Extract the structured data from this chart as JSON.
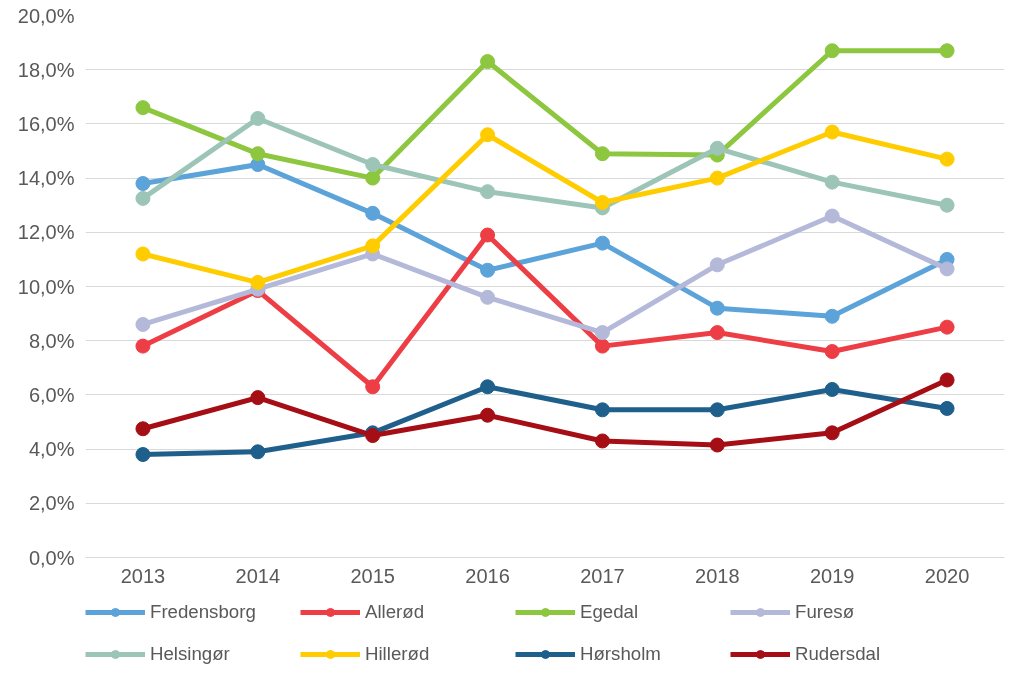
{
  "chart_data": {
    "type": "line",
    "categories": [
      "2013",
      "2014",
      "2015",
      "2016",
      "2017",
      "2018",
      "2019",
      "2020"
    ],
    "ylim": [
      0,
      20
    ],
    "yticks": [
      {
        "value": 0,
        "label": "0,0%"
      },
      {
        "value": 2,
        "label": "2,0%"
      },
      {
        "value": 4,
        "label": "4,0%"
      },
      {
        "value": 6,
        "label": "6,0%"
      },
      {
        "value": 8,
        "label": "8,0%"
      },
      {
        "value": 10,
        "label": "10,0%"
      },
      {
        "value": 12,
        "label": "12,0%"
      },
      {
        "value": 14,
        "label": "14,0%"
      },
      {
        "value": 16,
        "label": "16,0%"
      },
      {
        "value": 18,
        "label": "18,0%"
      },
      {
        "value": 20,
        "label": "20,0%"
      }
    ],
    "grid": "y",
    "legend": "bottom",
    "marker": "circle",
    "line_style": "solid",
    "series": [
      {
        "name": "Fredensborg",
        "color": "#5ba3d9",
        "values": [
          13.8,
          14.5,
          12.7,
          10.6,
          11.6,
          9.2,
          8.9,
          11.0
        ]
      },
      {
        "name": "Allerød",
        "color": "#ee3e45",
        "values": [
          7.8,
          9.85,
          6.3,
          11.9,
          7.8,
          8.3,
          7.6,
          8.5
        ]
      },
      {
        "name": "Egedal",
        "color": "#8dc63f",
        "values": [
          16.6,
          14.9,
          14.0,
          18.3,
          14.9,
          14.85,
          18.7,
          18.7
        ]
      },
      {
        "name": "Furesø",
        "color": "#b4b9d9",
        "values": [
          8.6,
          9.9,
          11.2,
          9.6,
          8.3,
          10.8,
          12.6,
          10.65
        ]
      },
      {
        "name": "Helsingør",
        "color": "#9cc5b8",
        "values": [
          13.25,
          16.2,
          14.5,
          13.5,
          12.9,
          15.1,
          13.85,
          13.0
        ]
      },
      {
        "name": "Hillerød",
        "color": "#ffcc00",
        "values": [
          11.2,
          10.15,
          11.5,
          15.6,
          13.1,
          14.0,
          15.7,
          14.7
        ]
      },
      {
        "name": "Hørsholm",
        "color": "#1f5f8b",
        "values": [
          3.8,
          3.9,
          4.6,
          6.3,
          5.45,
          5.45,
          6.2,
          5.5
        ]
      },
      {
        "name": "Rudersdal",
        "color": "#a50e15",
        "values": [
          4.75,
          5.9,
          4.5,
          5.25,
          4.3,
          4.15,
          4.6,
          6.55
        ]
      }
    ]
  }
}
